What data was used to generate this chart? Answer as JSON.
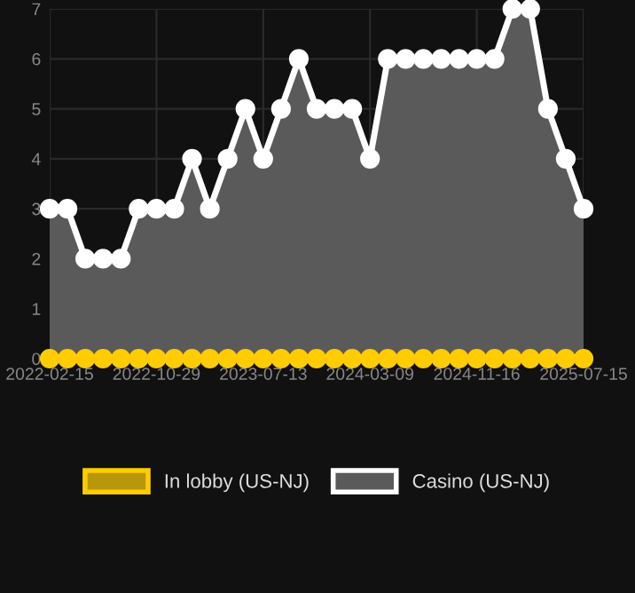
{
  "chart_data": {
    "type": "line",
    "categories": [
      "2022-02-15",
      null,
      null,
      null,
      null,
      null,
      "2022-10-29",
      null,
      null,
      null,
      null,
      null,
      "2023-07-13",
      null,
      null,
      null,
      null,
      null,
      "2024-03-09",
      null,
      null,
      null,
      null,
      null,
      "2024-11-16",
      null,
      null,
      null,
      null,
      null,
      "2025-07-15"
    ],
    "series": [
      {
        "name": "In lobby (US-NJ)",
        "color": "#ffcc00",
        "values": [
          0,
          0,
          0,
          0,
          0,
          0,
          0,
          0,
          0,
          0,
          0,
          0,
          0,
          0,
          0,
          0,
          0,
          0,
          0,
          0,
          0,
          0,
          0,
          0,
          0,
          0,
          0,
          0,
          0,
          0,
          0
        ]
      },
      {
        "name": "Casino (US-NJ)",
        "color": "#ffffff",
        "type": "area",
        "values": [
          3,
          3,
          2,
          2,
          2,
          3,
          3,
          3,
          4,
          3,
          4,
          5,
          4,
          5,
          6,
          5,
          5,
          5,
          4,
          6,
          6,
          6,
          6,
          6,
          6,
          6,
          7,
          7,
          5,
          4,
          3
        ]
      }
    ],
    "ylim": [
      0,
      7
    ],
    "yticks": [
      0,
      1,
      2,
      3,
      4,
      5,
      6,
      7
    ],
    "grid": true,
    "legend": "bottom",
    "marker": "circle"
  }
}
